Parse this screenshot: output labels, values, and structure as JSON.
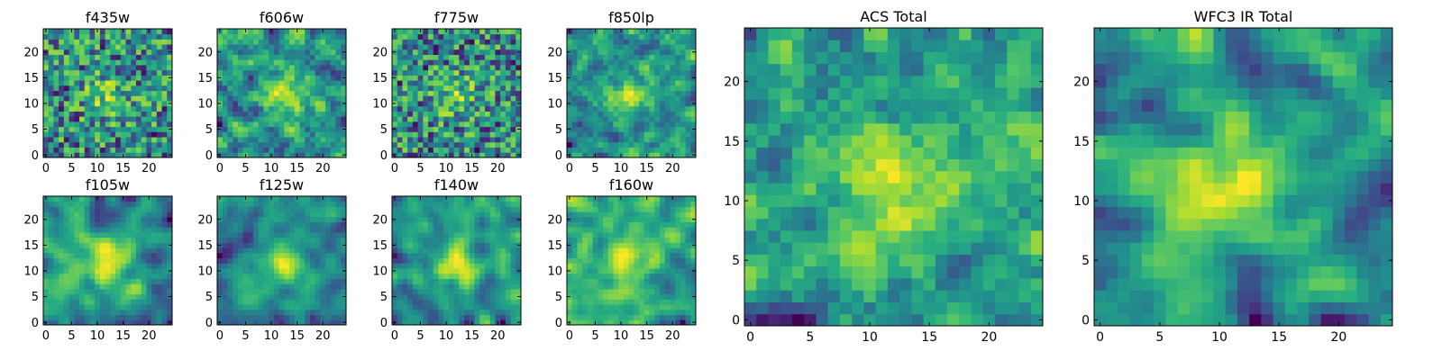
{
  "chart_data": [
    {
      "type": "heatmap",
      "title": "f435w",
      "colormap": "viridis",
      "grid_size": 25,
      "xticks": [
        0,
        5,
        10,
        15,
        20
      ],
      "yticks": [
        0,
        5,
        10,
        15,
        20
      ],
      "xlim": [
        0,
        25
      ],
      "ylim": [
        0,
        25
      ],
      "seed": 11,
      "smooth": 0
    },
    {
      "type": "heatmap",
      "title": "f606w",
      "colormap": "viridis",
      "grid_size": 25,
      "xticks": [
        0,
        5,
        10,
        15,
        20
      ],
      "yticks": [
        0,
        5,
        10,
        15,
        20
      ],
      "xlim": [
        0,
        25
      ],
      "ylim": [
        0,
        25
      ],
      "seed": 23,
      "smooth": 1
    },
    {
      "type": "heatmap",
      "title": "f775w",
      "colormap": "viridis",
      "grid_size": 25,
      "xticks": [
        0,
        5,
        10,
        15,
        20
      ],
      "yticks": [
        0,
        5,
        10,
        15,
        20
      ],
      "xlim": [
        0,
        25
      ],
      "ylim": [
        0,
        25
      ],
      "seed": 37,
      "smooth": 0
    },
    {
      "type": "heatmap",
      "title": "f850lp",
      "colormap": "viridis",
      "grid_size": 25,
      "xticks": [
        0,
        5,
        10,
        15,
        20
      ],
      "yticks": [
        0,
        5,
        10,
        15,
        20
      ],
      "xlim": [
        0,
        25
      ],
      "ylim": [
        0,
        25
      ],
      "seed": 41,
      "smooth": 1
    },
    {
      "type": "heatmap",
      "title": "f105w",
      "colormap": "viridis",
      "grid_size": 25,
      "xticks": [
        0,
        5,
        10,
        15,
        20
      ],
      "yticks": [
        0,
        5,
        10,
        15,
        20
      ],
      "xlim": [
        0,
        25
      ],
      "ylim": [
        0,
        25
      ],
      "seed": 53,
      "smooth": 2
    },
    {
      "type": "heatmap",
      "title": "f125w",
      "colormap": "viridis",
      "grid_size": 25,
      "xticks": [
        0,
        5,
        10,
        15,
        20
      ],
      "yticks": [
        0,
        5,
        10,
        15,
        20
      ],
      "xlim": [
        0,
        25
      ],
      "ylim": [
        0,
        25
      ],
      "seed": 67,
      "smooth": 2
    },
    {
      "type": "heatmap",
      "title": "f140w",
      "colormap": "viridis",
      "grid_size": 25,
      "xticks": [
        0,
        5,
        10,
        15,
        20
      ],
      "yticks": [
        0,
        5,
        10,
        15,
        20
      ],
      "xlim": [
        0,
        25
      ],
      "ylim": [
        0,
        25
      ],
      "seed": 79,
      "smooth": 2
    },
    {
      "type": "heatmap",
      "title": "f160w",
      "colormap": "viridis",
      "grid_size": 25,
      "xticks": [
        0,
        5,
        10,
        15,
        20
      ],
      "yticks": [
        0,
        5,
        10,
        15,
        20
      ],
      "xlim": [
        0,
        25
      ],
      "ylim": [
        0,
        25
      ],
      "seed": 83,
      "smooth": 2
    },
    {
      "type": "heatmap",
      "title": "ACS Total",
      "colormap": "viridis",
      "grid_size": 25,
      "xticks": [
        0,
        5,
        10,
        15,
        20
      ],
      "yticks": [
        0,
        5,
        10,
        15,
        20
      ],
      "xlim": [
        0,
        25
      ],
      "ylim": [
        0,
        25
      ],
      "seed": 97,
      "smooth": 1
    },
    {
      "type": "heatmap",
      "title": "WFC3 IR Total",
      "colormap": "viridis",
      "grid_size": 25,
      "xticks": [
        0,
        5,
        10,
        15,
        20
      ],
      "yticks": [
        0,
        5,
        10,
        15,
        20
      ],
      "xlim": [
        0,
        25
      ],
      "ylim": [
        0,
        25
      ],
      "seed": 101,
      "smooth": 2
    }
  ]
}
